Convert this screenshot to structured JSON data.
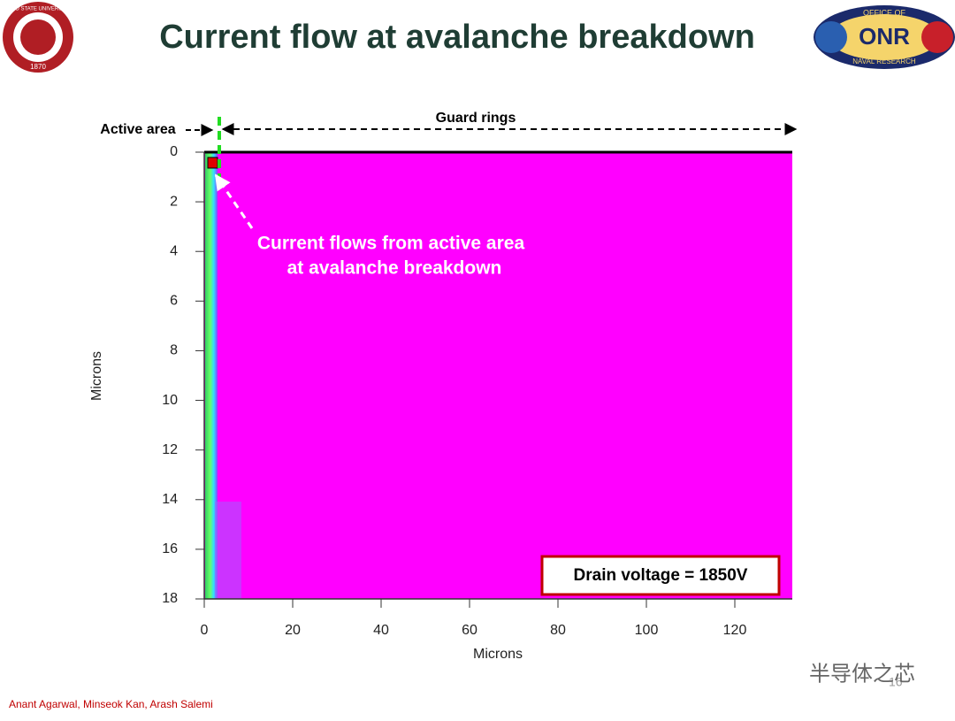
{
  "header": {
    "title": "Current flow at avalanche breakdown",
    "left_logo": {
      "text": "OHIO STATE UNIVERSITY",
      "year": "1870"
    },
    "right_logo": {
      "top": "OFFICE OF",
      "name": "ONR",
      "bottom": "NAVAL RESEARCH"
    }
  },
  "chart_data": {
    "type": "contour",
    "xlabel": "Microns",
    "ylabel": "Microns",
    "xlim": [
      0,
      133
    ],
    "xticks": [
      0,
      20,
      40,
      60,
      80,
      100,
      120
    ],
    "ylim": [
      18,
      0
    ],
    "yticks": [
      0,
      2,
      4,
      6,
      8,
      10,
      12,
      14,
      16,
      18
    ],
    "fill_color": "#ff00ff",
    "annotations": {
      "active_area": "Active area",
      "guard_rings": "Guard rings",
      "current": [
        "Current flows from active area",
        "at avalanche breakdown"
      ],
      "voltage": "Drain voltage = 1850V"
    }
  },
  "footer": {
    "authors": "Anant Agarwal, Minseok Kan, Arash Salemi",
    "page": "16",
    "watermark": "半导体之芯"
  }
}
